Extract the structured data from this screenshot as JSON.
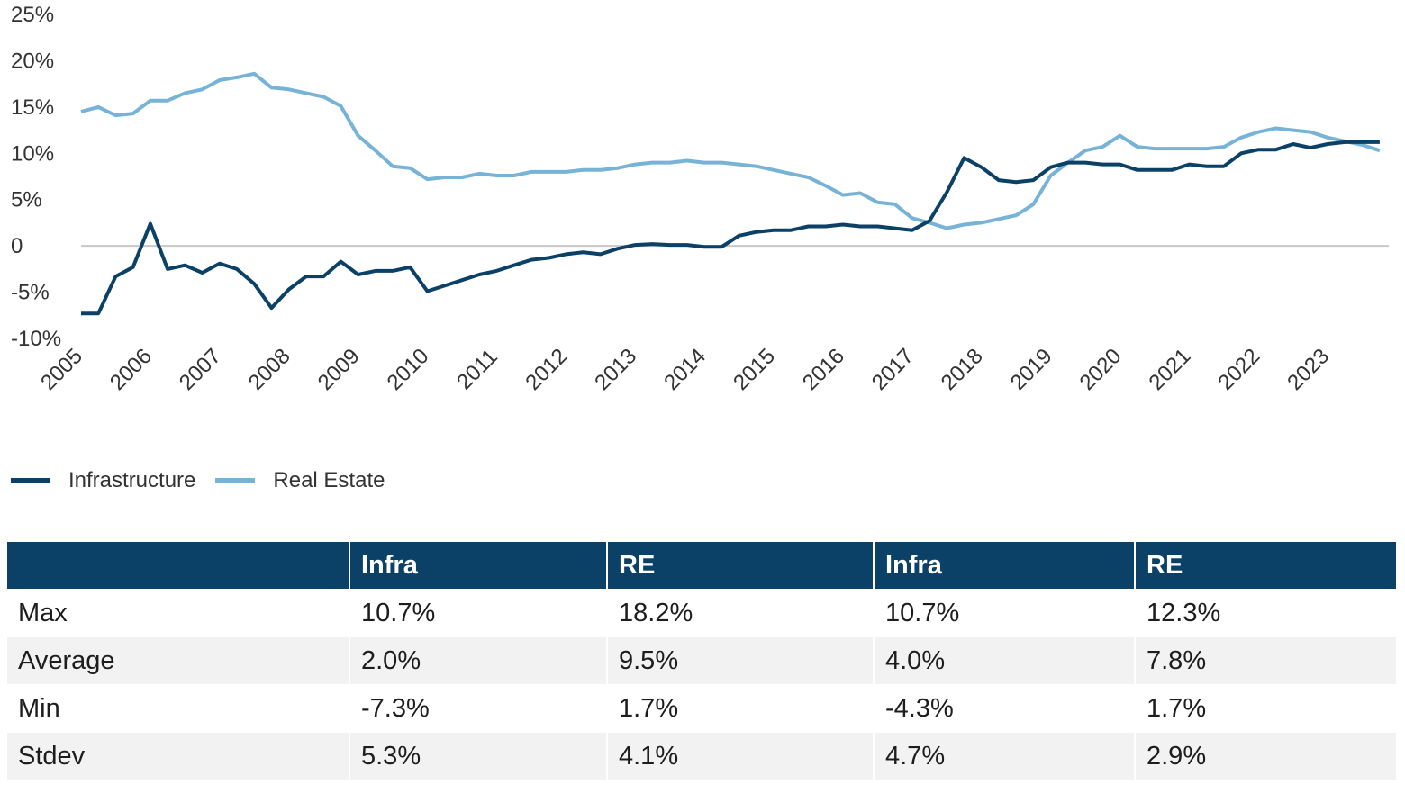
{
  "chart_data": {
    "type": "line",
    "ylim": [
      -10,
      25
    ],
    "y_ticks": [
      25,
      20,
      15,
      10,
      5,
      0,
      -5,
      -10
    ],
    "y_tick_labels": [
      "25%",
      "20%",
      "15%",
      "10%",
      "5%",
      "0",
      "-5%",
      "-10%"
    ],
    "x_range": [
      2005,
      2023.75
    ],
    "x_tick_labels": [
      "2005",
      "2006",
      "2007",
      "2008",
      "2009",
      "2010",
      "2011",
      "2012",
      "2013",
      "2014",
      "2015",
      "2016",
      "2017",
      "2018",
      "2019",
      "2020",
      "2021",
      "2022",
      "2023"
    ],
    "zero_line": true,
    "legend_position": "bottom-left",
    "series": [
      {
        "name": "Infrastructure",
        "color": "#0b4166",
        "points": [
          [
            2005.0,
            -7.3
          ],
          [
            2005.25,
            -7.3
          ],
          [
            2005.5,
            -3.3
          ],
          [
            2005.75,
            -2.3
          ],
          [
            2006.0,
            2.4
          ],
          [
            2006.25,
            -2.5
          ],
          [
            2006.5,
            -2.1
          ],
          [
            2006.75,
            -2.9
          ],
          [
            2007.0,
            -1.9
          ],
          [
            2007.25,
            -2.5
          ],
          [
            2007.5,
            -4.1
          ],
          [
            2007.75,
            -6.7
          ],
          [
            2008.0,
            -4.7
          ],
          [
            2008.25,
            -3.3
          ],
          [
            2008.5,
            -3.3
          ],
          [
            2008.75,
            -1.7
          ],
          [
            2009.0,
            -3.1
          ],
          [
            2009.25,
            -2.7
          ],
          [
            2009.5,
            -2.7
          ],
          [
            2009.75,
            -2.3
          ],
          [
            2010.0,
            -4.9
          ],
          [
            2010.25,
            -4.3
          ],
          [
            2010.5,
            -3.7
          ],
          [
            2010.75,
            -3.1
          ],
          [
            2011.0,
            -2.7
          ],
          [
            2011.25,
            -2.1
          ],
          [
            2011.5,
            -1.5
          ],
          [
            2011.75,
            -1.3
          ],
          [
            2012.0,
            -0.9
          ],
          [
            2012.25,
            -0.7
          ],
          [
            2012.5,
            -0.9
          ],
          [
            2012.75,
            -0.3
          ],
          [
            2013.0,
            0.1
          ],
          [
            2013.25,
            0.2
          ],
          [
            2013.5,
            0.1
          ],
          [
            2013.75,
            0.1
          ],
          [
            2014.0,
            -0.1
          ],
          [
            2014.25,
            -0.1
          ],
          [
            2014.5,
            1.1
          ],
          [
            2014.75,
            1.5
          ],
          [
            2015.0,
            1.7
          ],
          [
            2015.25,
            1.7
          ],
          [
            2015.5,
            2.1
          ],
          [
            2015.75,
            2.1
          ],
          [
            2016.0,
            2.3
          ],
          [
            2016.25,
            2.1
          ],
          [
            2016.5,
            2.1
          ],
          [
            2016.75,
            1.9
          ],
          [
            2017.0,
            1.7
          ],
          [
            2017.25,
            2.7
          ],
          [
            2017.5,
            5.8
          ],
          [
            2017.75,
            9.5
          ],
          [
            2018.0,
            8.5
          ],
          [
            2018.25,
            7.1
          ],
          [
            2018.5,
            6.9
          ],
          [
            2018.75,
            7.1
          ],
          [
            2019.0,
            8.5
          ],
          [
            2019.25,
            9.0
          ],
          [
            2019.5,
            9.0
          ],
          [
            2019.75,
            8.8
          ],
          [
            2020.0,
            8.8
          ],
          [
            2020.25,
            8.2
          ],
          [
            2020.5,
            8.2
          ],
          [
            2020.75,
            8.2
          ],
          [
            2021.0,
            8.8
          ],
          [
            2021.25,
            8.6
          ],
          [
            2021.5,
            8.6
          ],
          [
            2021.75,
            10.0
          ],
          [
            2022.0,
            10.4
          ],
          [
            2022.25,
            10.4
          ],
          [
            2022.5,
            11.0
          ],
          [
            2022.75,
            10.6
          ],
          [
            2023.0,
            11.0
          ],
          [
            2023.25,
            11.2
          ],
          [
            2023.5,
            11.2
          ],
          [
            2023.75,
            11.2
          ]
        ]
      },
      {
        "name": "Real Estate",
        "color": "#77b3d6",
        "points": [
          [
            2005.0,
            14.5
          ],
          [
            2005.25,
            15.0
          ],
          [
            2005.5,
            14.1
          ],
          [
            2005.75,
            14.3
          ],
          [
            2006.0,
            15.7
          ],
          [
            2006.25,
            15.7
          ],
          [
            2006.5,
            16.5
          ],
          [
            2006.75,
            16.9
          ],
          [
            2007.0,
            17.9
          ],
          [
            2007.25,
            18.2
          ],
          [
            2007.5,
            18.6
          ],
          [
            2007.75,
            17.1
          ],
          [
            2008.0,
            16.9
          ],
          [
            2008.25,
            16.5
          ],
          [
            2008.5,
            16.1
          ],
          [
            2008.75,
            15.1
          ],
          [
            2009.0,
            11.9
          ],
          [
            2009.25,
            10.3
          ],
          [
            2009.5,
            8.6
          ],
          [
            2009.75,
            8.4
          ],
          [
            2010.0,
            7.2
          ],
          [
            2010.25,
            7.4
          ],
          [
            2010.5,
            7.4
          ],
          [
            2010.75,
            7.8
          ],
          [
            2011.0,
            7.6
          ],
          [
            2011.25,
            7.6
          ],
          [
            2011.5,
            8.0
          ],
          [
            2011.75,
            8.0
          ],
          [
            2012.0,
            8.0
          ],
          [
            2012.25,
            8.2
          ],
          [
            2012.5,
            8.2
          ],
          [
            2012.75,
            8.4
          ],
          [
            2013.0,
            8.8
          ],
          [
            2013.25,
            9.0
          ],
          [
            2013.5,
            9.0
          ],
          [
            2013.75,
            9.2
          ],
          [
            2014.0,
            9.0
          ],
          [
            2014.25,
            9.0
          ],
          [
            2014.5,
            8.8
          ],
          [
            2014.75,
            8.6
          ],
          [
            2015.0,
            8.2
          ],
          [
            2015.25,
            7.8
          ],
          [
            2015.5,
            7.4
          ],
          [
            2015.75,
            6.5
          ],
          [
            2016.0,
            5.5
          ],
          [
            2016.25,
            5.7
          ],
          [
            2016.5,
            4.7
          ],
          [
            2016.75,
            4.5
          ],
          [
            2017.0,
            3.0
          ],
          [
            2017.25,
            2.5
          ],
          [
            2017.5,
            1.9
          ],
          [
            2017.75,
            2.3
          ],
          [
            2018.0,
            2.5
          ],
          [
            2018.25,
            2.9
          ],
          [
            2018.5,
            3.3
          ],
          [
            2018.75,
            4.5
          ],
          [
            2019.0,
            7.6
          ],
          [
            2019.25,
            9.0
          ],
          [
            2019.5,
            10.3
          ],
          [
            2019.75,
            10.7
          ],
          [
            2020.0,
            11.9
          ],
          [
            2020.25,
            10.7
          ],
          [
            2020.5,
            10.5
          ],
          [
            2020.75,
            10.5
          ],
          [
            2021.0,
            10.5
          ],
          [
            2021.25,
            10.5
          ],
          [
            2021.5,
            10.7
          ],
          [
            2021.75,
            11.7
          ],
          [
            2022.0,
            12.3
          ],
          [
            2022.25,
            12.7
          ],
          [
            2022.5,
            12.5
          ],
          [
            2022.75,
            12.3
          ],
          [
            2023.0,
            11.7
          ],
          [
            2023.25,
            11.3
          ],
          [
            2023.5,
            10.9
          ],
          [
            2023.75,
            10.3
          ]
        ]
      }
    ]
  },
  "legend": {
    "items": [
      {
        "label": "Infrastructure",
        "color": "#0b4166"
      },
      {
        "label": "Real Estate",
        "color": "#77b3d6"
      }
    ]
  },
  "table": {
    "header_color": "#0b4166",
    "headers": [
      "",
      "Infra",
      "RE",
      "Infra",
      "RE"
    ],
    "rows": [
      {
        "label": "Max",
        "values": [
          "10.7%",
          "18.2%",
          "10.7%",
          "12.3%"
        ]
      },
      {
        "label": "Average",
        "values": [
          "2.0%",
          "9.5%",
          "4.0%",
          "7.8%"
        ]
      },
      {
        "label": "Min",
        "values": [
          "-7.3%",
          "1.7%",
          "-4.3%",
          "1.7%"
        ]
      },
      {
        "label": "Stdev",
        "values": [
          "5.3%",
          "4.1%",
          "4.7%",
          "2.9%"
        ]
      }
    ]
  }
}
